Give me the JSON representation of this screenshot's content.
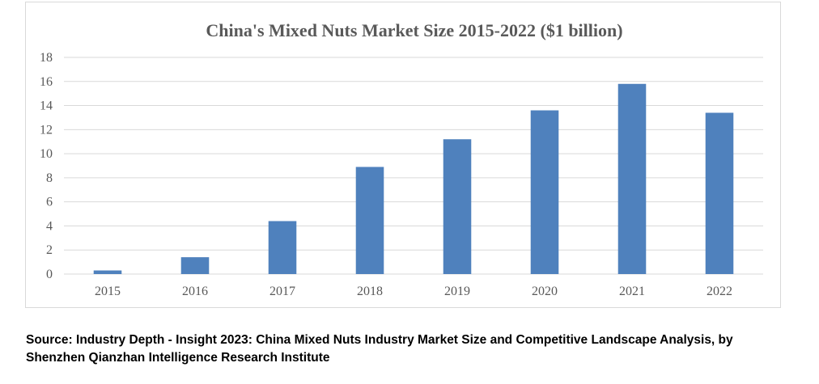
{
  "chart_data": {
    "type": "bar",
    "title": "China's Mixed Nuts Market Size 2015-2022 ($1 billion)",
    "xlabel": "",
    "ylabel": "",
    "categories": [
      "2015",
      "2016",
      "2017",
      "2018",
      "2019",
      "2020",
      "2021",
      "2022"
    ],
    "values": [
      0.3,
      1.4,
      4.4,
      8.9,
      11.2,
      13.6,
      15.8,
      13.4
    ],
    "ylim": [
      0,
      18
    ],
    "yticks": [
      0,
      2,
      4,
      6,
      8,
      10,
      12,
      14,
      16,
      18
    ],
    "grid": true,
    "legend": "none",
    "bar_color": "#4f81bd",
    "grid_color": "#d9d9d9"
  },
  "source": {
    "line1": "Source: Industry Depth - Insight 2023: China Mixed Nuts Industry Market Size and Competitive Landscape Analysis, by",
    "line2": "Shenzhen Qianzhan Intelligence Research Institute"
  }
}
